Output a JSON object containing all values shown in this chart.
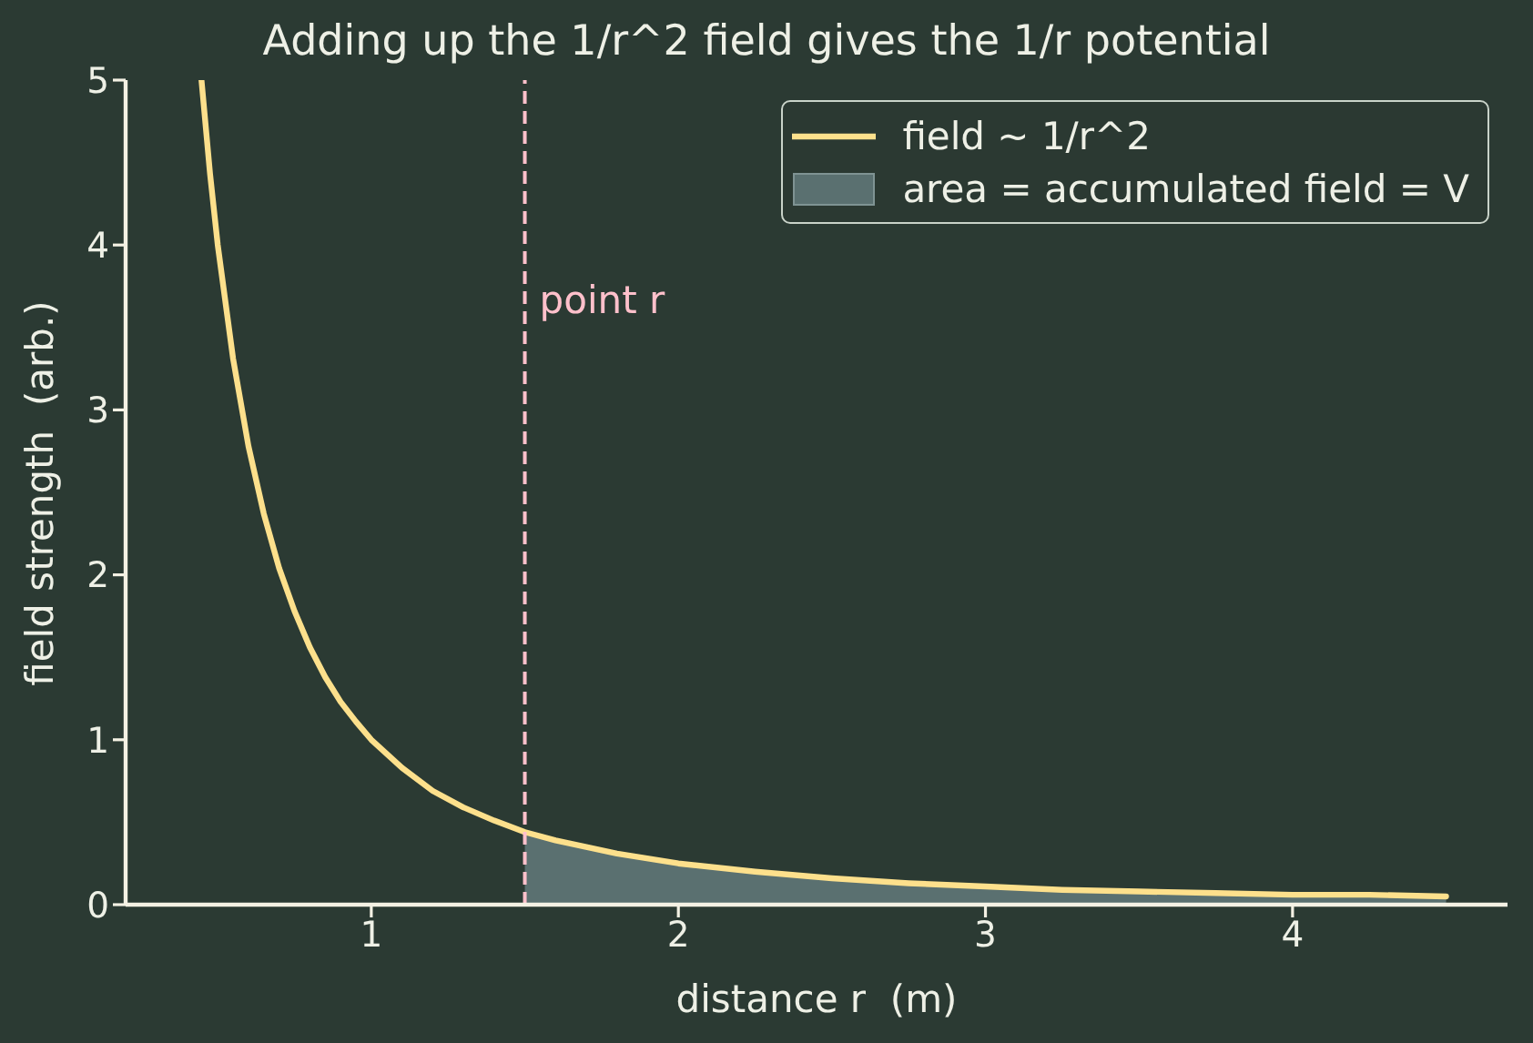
{
  "chart_data": {
    "type": "line",
    "title": "Adding up the 1/r^2 field gives the 1/r potential",
    "xlabel": "distance r  (m)",
    "ylabel": "field strength  (arb.)",
    "xlim": [
      0.2,
      4.7
    ],
    "xticks": [
      1,
      2,
      3,
      4
    ],
    "ylim": [
      0,
      5
    ],
    "yticks": [
      0,
      1,
      2,
      3,
      4,
      5
    ],
    "legend": "top right",
    "ref_lines": [
      {
        "axis": "x",
        "value": 1.5,
        "label": "point r",
        "color": "#ffc0cb",
        "line_style": "dashed"
      }
    ],
    "series": [
      {
        "name": "field ~ 1/r^2",
        "color": "#fde08c",
        "x": [
          0.447,
          0.475,
          0.5,
          0.55,
          0.6,
          0.65,
          0.7,
          0.75,
          0.8,
          0.85,
          0.9,
          0.95,
          1.0,
          1.1,
          1.2,
          1.3,
          1.4,
          1.5,
          1.6,
          1.7,
          1.8,
          2.0,
          2.25,
          2.5,
          2.75,
          3.0,
          3.25,
          3.5,
          3.75,
          4.0,
          4.25,
          4.5
        ],
        "values": [
          5.0,
          4.43,
          4.0,
          3.31,
          2.78,
          2.37,
          2.04,
          1.78,
          1.56,
          1.38,
          1.23,
          1.11,
          1.0,
          0.83,
          0.69,
          0.59,
          0.51,
          0.44,
          0.39,
          0.35,
          0.31,
          0.25,
          0.2,
          0.16,
          0.13,
          0.11,
          0.09,
          0.08,
          0.07,
          0.06,
          0.06,
          0.05
        ]
      },
      {
        "name": "area = accumulated field = V",
        "type": "area",
        "color": "#5a7070",
        "x": [
          1.5,
          1.6,
          1.7,
          1.8,
          2.0,
          2.25,
          2.5,
          2.75,
          3.0,
          3.25,
          3.5,
          3.75,
          4.0,
          4.25,
          4.5
        ],
        "values": [
          0.44,
          0.39,
          0.35,
          0.31,
          0.25,
          0.2,
          0.16,
          0.13,
          0.11,
          0.09,
          0.08,
          0.07,
          0.06,
          0.06,
          0.05
        ]
      }
    ]
  }
}
